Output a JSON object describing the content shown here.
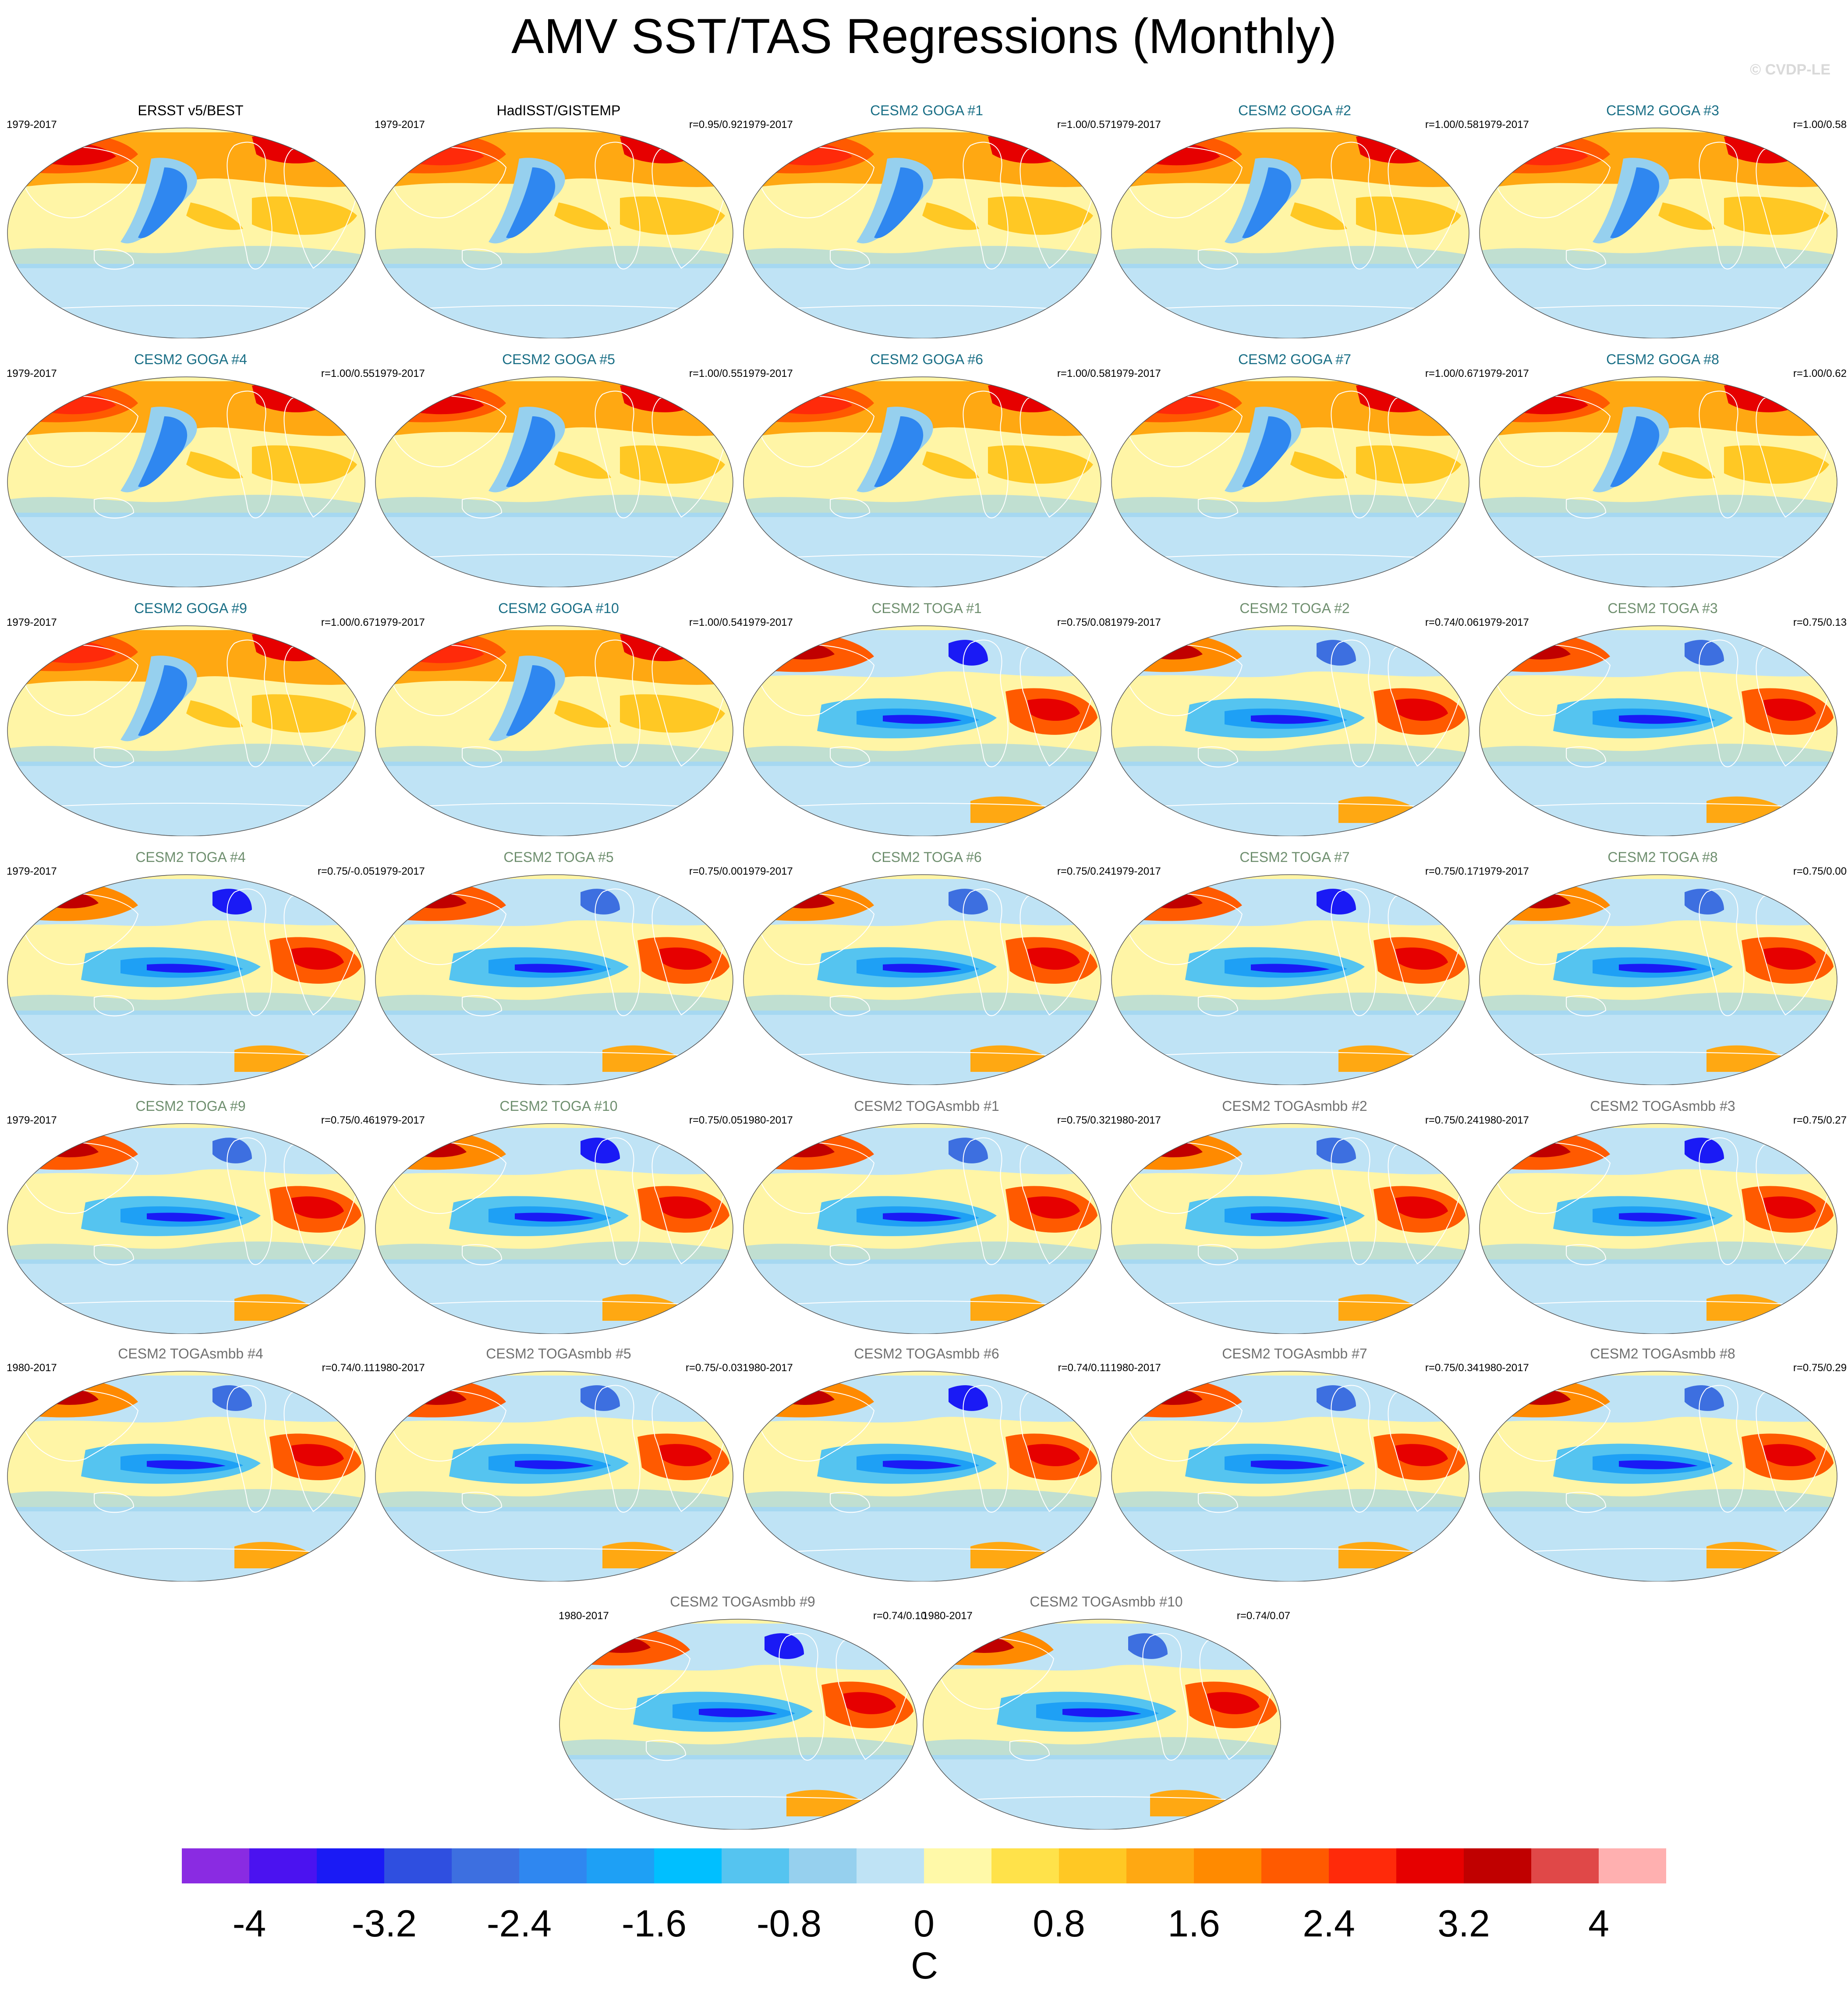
{
  "title": "AMV SST/TAS Regressions (Monthly)",
  "watermark": "© CVDP-LE",
  "colors": {
    "obs_title": "#000000",
    "goga_title": "#1a6f86",
    "toga_title": "#6f8f6f",
    "smbb_title": "#707070",
    "land_outline": "#ffffff"
  },
  "panels": [
    {
      "title": "ERSST v5/BEST",
      "period": "1979-2017",
      "corr": "",
      "group": "obs"
    },
    {
      "title": "HadISST/GISTEMP",
      "period": "1979-2017",
      "corr": "r=0.95/0.92",
      "group": "obs"
    },
    {
      "title": "CESM2 GOGA #1",
      "period": "1979-2017",
      "corr": "r=1.00/0.57",
      "group": "goga"
    },
    {
      "title": "CESM2 GOGA #2",
      "period": "1979-2017",
      "corr": "r=1.00/0.58",
      "group": "goga"
    },
    {
      "title": "CESM2 GOGA #3",
      "period": "1979-2017",
      "corr": "r=1.00/0.58",
      "group": "goga"
    },
    {
      "title": "CESM2 GOGA #4",
      "period": "1979-2017",
      "corr": "r=1.00/0.55",
      "group": "goga"
    },
    {
      "title": "CESM2 GOGA #5",
      "period": "1979-2017",
      "corr": "r=1.00/0.55",
      "group": "goga"
    },
    {
      "title": "CESM2 GOGA #6",
      "period": "1979-2017",
      "corr": "r=1.00/0.58",
      "group": "goga"
    },
    {
      "title": "CESM2 GOGA #7",
      "period": "1979-2017",
      "corr": "r=1.00/0.67",
      "group": "goga"
    },
    {
      "title": "CESM2 GOGA #8",
      "period": "1979-2017",
      "corr": "r=1.00/0.62",
      "group": "goga"
    },
    {
      "title": "CESM2 GOGA #9",
      "period": "1979-2017",
      "corr": "r=1.00/0.67",
      "group": "goga"
    },
    {
      "title": "CESM2 GOGA #10",
      "period": "1979-2017",
      "corr": "r=1.00/0.54",
      "group": "goga"
    },
    {
      "title": "CESM2 TOGA #1",
      "period": "1979-2017",
      "corr": "r=0.75/0.08",
      "group": "toga"
    },
    {
      "title": "CESM2 TOGA #2",
      "period": "1979-2017",
      "corr": "r=0.74/0.06",
      "group": "toga"
    },
    {
      "title": "CESM2 TOGA #3",
      "period": "1979-2017",
      "corr": "r=0.75/0.13",
      "group": "toga"
    },
    {
      "title": "CESM2 TOGA #4",
      "period": "1979-2017",
      "corr": "r=0.75/-0.05",
      "group": "toga"
    },
    {
      "title": "CESM2 TOGA #5",
      "period": "1979-2017",
      "corr": "r=0.75/0.00",
      "group": "toga"
    },
    {
      "title": "CESM2 TOGA #6",
      "period": "1979-2017",
      "corr": "r=0.75/0.24",
      "group": "toga"
    },
    {
      "title": "CESM2 TOGA #7",
      "period": "1979-2017",
      "corr": "r=0.75/0.17",
      "group": "toga"
    },
    {
      "title": "CESM2 TOGA #8",
      "period": "1979-2017",
      "corr": "r=0.75/0.00",
      "group": "toga"
    },
    {
      "title": "CESM2 TOGA #9",
      "period": "1979-2017",
      "corr": "r=0.75/0.46",
      "group": "toga"
    },
    {
      "title": "CESM2 TOGA #10",
      "period": "1979-2017",
      "corr": "r=0.75/0.05",
      "group": "toga"
    },
    {
      "title": "CESM2 TOGAsmbb #1",
      "period": "1980-2017",
      "corr": "r=0.75/0.32",
      "group": "smbb"
    },
    {
      "title": "CESM2 TOGAsmbb #2",
      "period": "1980-2017",
      "corr": "r=0.75/0.24",
      "group": "smbb"
    },
    {
      "title": "CESM2 TOGAsmbb #3",
      "period": "1980-2017",
      "corr": "r=0.75/0.27",
      "group": "smbb"
    },
    {
      "title": "CESM2 TOGAsmbb #4",
      "period": "1980-2017",
      "corr": "r=0.74/0.11",
      "group": "smbb"
    },
    {
      "title": "CESM2 TOGAsmbb #5",
      "period": "1980-2017",
      "corr": "r=0.75/-0.03",
      "group": "smbb"
    },
    {
      "title": "CESM2 TOGAsmbb #6",
      "period": "1980-2017",
      "corr": "r=0.74/0.11",
      "group": "smbb"
    },
    {
      "title": "CESM2 TOGAsmbb #7",
      "period": "1980-2017",
      "corr": "r=0.75/0.34",
      "group": "smbb"
    },
    {
      "title": "CESM2 TOGAsmbb #8",
      "period": "1980-2017",
      "corr": "r=0.75/0.29",
      "group": "smbb"
    },
    {
      "title": "CESM2 TOGAsmbb #9",
      "period": "1980-2017",
      "corr": "r=0.74/0.10",
      "group": "smbb"
    },
    {
      "title": "CESM2 TOGAsmbb #10",
      "period": "1980-2017",
      "corr": "r=0.74/0.07",
      "group": "smbb"
    }
  ],
  "colorbar": {
    "unit": "C",
    "tick_labels": [
      "-4",
      "-3.2",
      "-2.4",
      "-1.6",
      "-0.8",
      "0",
      "0.8",
      "1.6",
      "2.4",
      "3.2",
      "4"
    ],
    "colors": [
      "#8a2be2",
      "#4b12f0",
      "#1a1af5",
      "#2f4fe0",
      "#3d6fe0",
      "#2f87f0",
      "#1ea0f5",
      "#00bfff",
      "#55c4f0",
      "#96d0ee",
      "#bfe3f5",
      "#fff9a8",
      "#ffe24a",
      "#ffc824",
      "#ffa812",
      "#ff8a00",
      "#ff5a00",
      "#ff2a0a",
      "#e60000",
      "#c00000",
      "#e04848",
      "#ffb0b0"
    ]
  }
}
